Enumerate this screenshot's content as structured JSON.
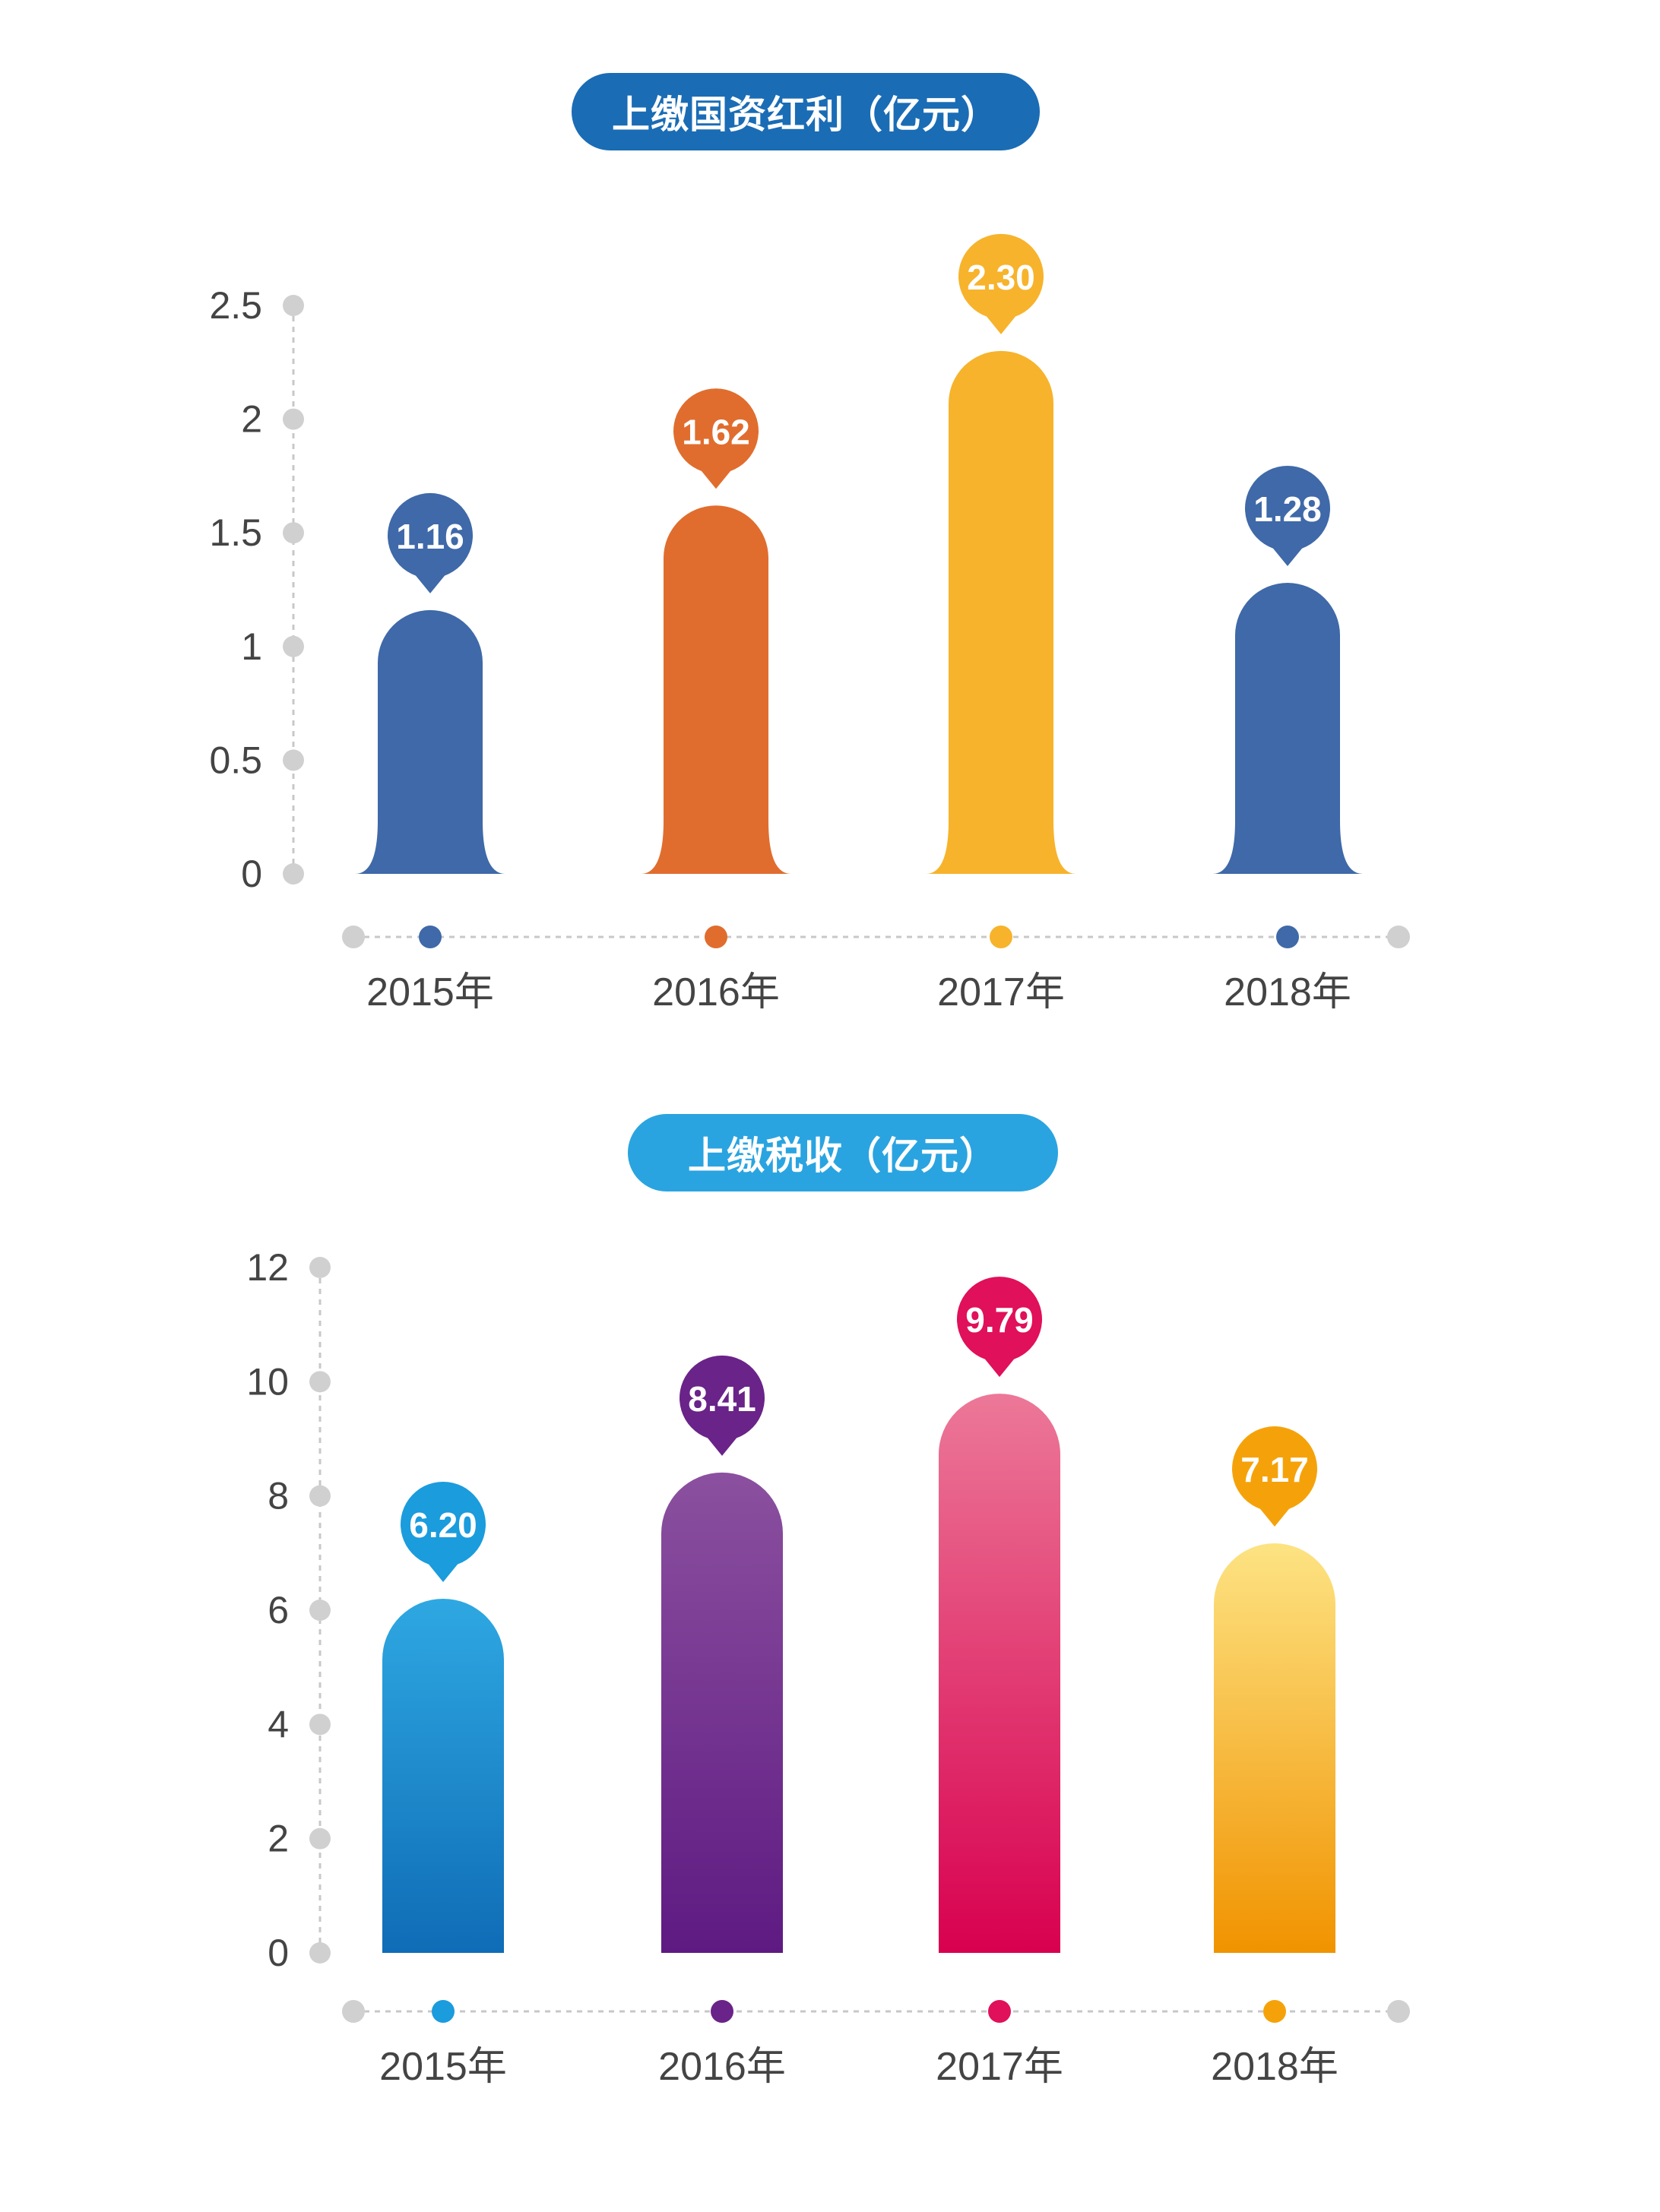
{
  "charts": [
    {
      "pill_color": "#1a6cb5",
      "chart_data": {
        "type": "bar",
        "title": "上缴国资红利（亿元）",
        "categories": [
          "2015年",
          "2016年",
          "2017年",
          "2018年"
        ],
        "values": [
          1.16,
          1.62,
          2.3,
          1.28
        ],
        "value_labels": [
          "1.16",
          "1.62",
          "2.30",
          "1.28"
        ],
        "ylim": [
          0,
          2.5
        ],
        "yticks": [
          0,
          0.5,
          1,
          1.5,
          2,
          2.5
        ],
        "ytick_labels": [
          "0",
          "0.5",
          "1",
          "1.5",
          "2",
          "2.5"
        ],
        "colors": [
          "#3f69a8",
          "#e06d2e",
          "#f7b32b",
          "#3f69a8"
        ],
        "grid": false
      }
    },
    {
      "pill_color": "#2aa4e0",
      "chart_data": {
        "type": "bar",
        "title": "上缴税收（亿元）",
        "categories": [
          "2015年",
          "2016年",
          "2017年",
          "2018年"
        ],
        "values": [
          6.2,
          8.41,
          9.79,
          7.17
        ],
        "value_labels": [
          "6.20",
          "8.41",
          "9.79",
          "7.17"
        ],
        "ylim": [
          0,
          12
        ],
        "yticks": [
          0,
          2,
          4,
          6,
          8,
          10,
          12
        ],
        "ytick_labels": [
          "0",
          "2",
          "4",
          "6",
          "8",
          "10",
          "12"
        ],
        "colors": [
          "#1a9cdd",
          "#6a2388",
          "#e0105a",
          "#f5a20a"
        ],
        "gradients": [
          [
            "#2ea8e2",
            "#0f6cb6"
          ],
          [
            "#8b509f",
            "#5e1a82"
          ],
          [
            "#ec7898",
            "#d8004f"
          ],
          [
            "#fde383",
            "#f19300"
          ]
        ],
        "grid": false
      }
    }
  ]
}
